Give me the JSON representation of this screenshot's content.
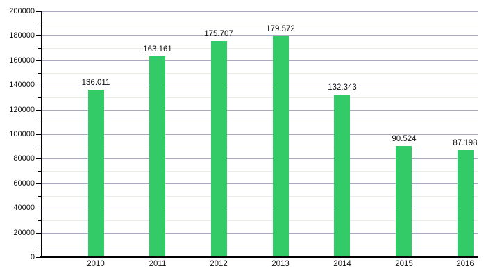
{
  "chart_data": {
    "type": "bar",
    "title": "",
    "xlabel": "",
    "ylabel": "",
    "categories": [
      "2010",
      "2011",
      "2012",
      "2013",
      "2014",
      "2015",
      "2016"
    ],
    "values": [
      136011,
      163161,
      175707,
      179572,
      132343,
      90524,
      87198
    ],
    "value_labels": [
      "136.011",
      "163.161",
      "175.707",
      "179.572",
      "132.343",
      "90.524",
      "87.198"
    ],
    "ylim": [
      0,
      200000
    ],
    "ytick_step": 20000,
    "yminor_step": 10000,
    "ytick_labels": [
      "0",
      "20000",
      "40000",
      "60000",
      "80000",
      "100000",
      "120000",
      "140000",
      "160000",
      "180000",
      "200000"
    ],
    "grid": true,
    "legend": false,
    "colors": {
      "bar": "#33cb67",
      "major_grid": "#a9a9c4",
      "minor_grid": "#ecece4",
      "axis": "#000000",
      "text": "#111111",
      "background": "#ffffff"
    }
  }
}
